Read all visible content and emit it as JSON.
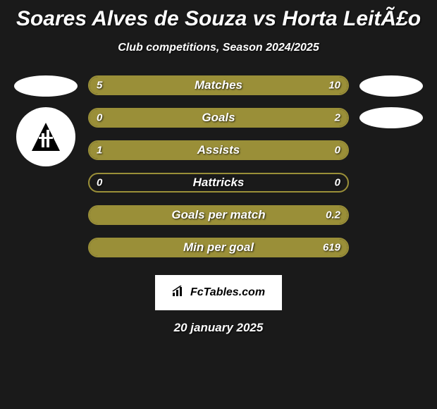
{
  "title": "Soares Alves de Souza vs Horta LeitÃ£o",
  "subtitle": "Club competitions, Season 2024/2025",
  "date": "20 january 2025",
  "watermark": "FcTables.com",
  "background_color": "#1a1a1a",
  "bar_color": "#9a8f38",
  "text_color": "#ffffff",
  "stats": [
    {
      "label": "Matches",
      "left_value": "5",
      "right_value": "10",
      "left_pct": 33,
      "right_pct": 67,
      "fill_mode": "split"
    },
    {
      "label": "Goals",
      "left_value": "0",
      "right_value": "2",
      "left_pct": 0,
      "right_pct": 100,
      "fill_mode": "right"
    },
    {
      "label": "Assists",
      "left_value": "1",
      "right_value": "0",
      "left_pct": 100,
      "right_pct": 0,
      "fill_mode": "left"
    },
    {
      "label": "Hattricks",
      "left_value": "0",
      "right_value": "0",
      "left_pct": 0,
      "right_pct": 0,
      "fill_mode": "none"
    },
    {
      "label": "Goals per match",
      "left_value": "",
      "right_value": "0.2",
      "left_pct": 0,
      "right_pct": 100,
      "fill_mode": "right"
    },
    {
      "label": "Min per goal",
      "left_value": "",
      "right_value": "619",
      "left_pct": 0,
      "right_pct": 100,
      "fill_mode": "right"
    }
  ]
}
